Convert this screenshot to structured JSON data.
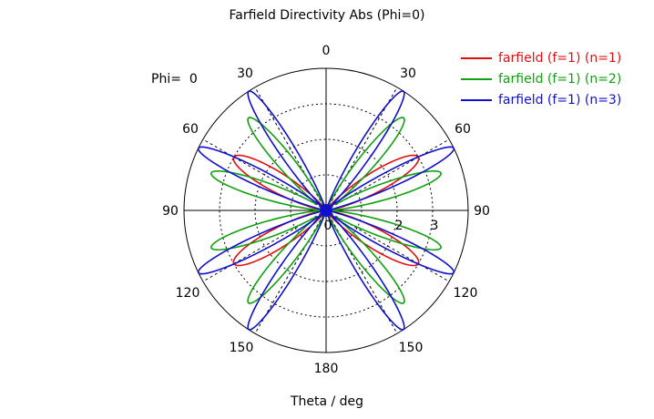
{
  "chart_data": {
    "type": "polar",
    "title": "Farfield Directivity Abs (Phi=0)",
    "xlabel": "Theta / deg",
    "phi_label": "Phi=",
    "phi_value": "0",
    "angle_labels": [
      "0",
      "30",
      "60",
      "90",
      "120",
      "150",
      "180",
      "150",
      "120",
      "90",
      "60",
      "30"
    ],
    "radial_ticks": [
      "0",
      "2",
      "3"
    ],
    "rmax": 4,
    "series": [
      {
        "name": "farfield (f=1) (n=1)",
        "color": "#e01010",
        "lobe_angles_deg": [
          60,
          120,
          240,
          300
        ],
        "peak": 3.0
      },
      {
        "name": "farfield (f=1) (n=2)",
        "color": "#10a010",
        "lobe_angles_deg": [
          40,
          72,
          108,
          140,
          220,
          252,
          288,
          320
        ],
        "peak": 3.4
      },
      {
        "name": "farfield (f=1) (n=3)",
        "color": "#1010cc",
        "lobe_angles_deg": [
          33,
          64,
          116,
          147,
          213,
          244,
          296,
          327
        ],
        "peak": 4.0
      }
    ]
  }
}
